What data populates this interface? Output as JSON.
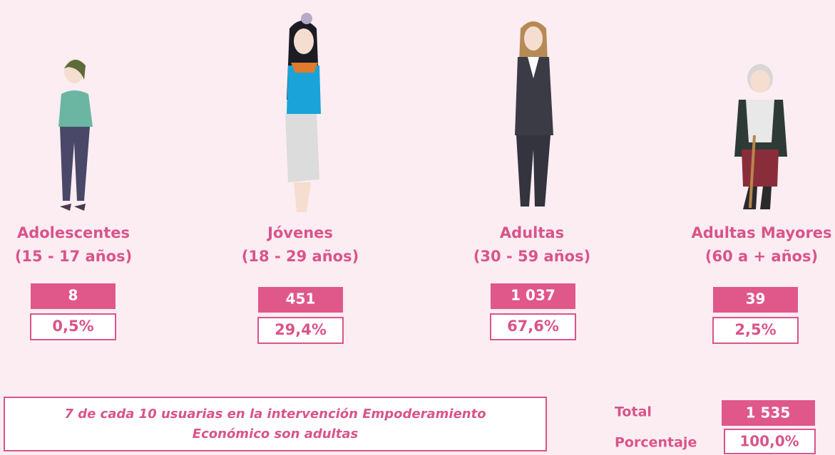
{
  "groups": [
    {
      "name": "Adolescentes",
      "range": "(15 - 17 años)",
      "count": "8",
      "percent": "0,5%"
    },
    {
      "name": "Jóvenes",
      "range": "(18 - 29 años)",
      "count": "451",
      "percent": "29,4%"
    },
    {
      "name": "Adultas",
      "range": "(30 - 59 años)",
      "count": "1 037",
      "percent": "67,6%"
    },
    {
      "name": "Adultas Mayores",
      "range": "(60 a + años)",
      "count": "39",
      "percent": "2,5%"
    }
  ],
  "note": {
    "line1": "7 de cada 10 usuarias en la intervención Empoderamiento",
    "line2": "Económico son adultas"
  },
  "total": {
    "label": "Total",
    "value": "1 535"
  },
  "percentage": {
    "label": "Porcentaje",
    "value": "100,0%"
  }
}
